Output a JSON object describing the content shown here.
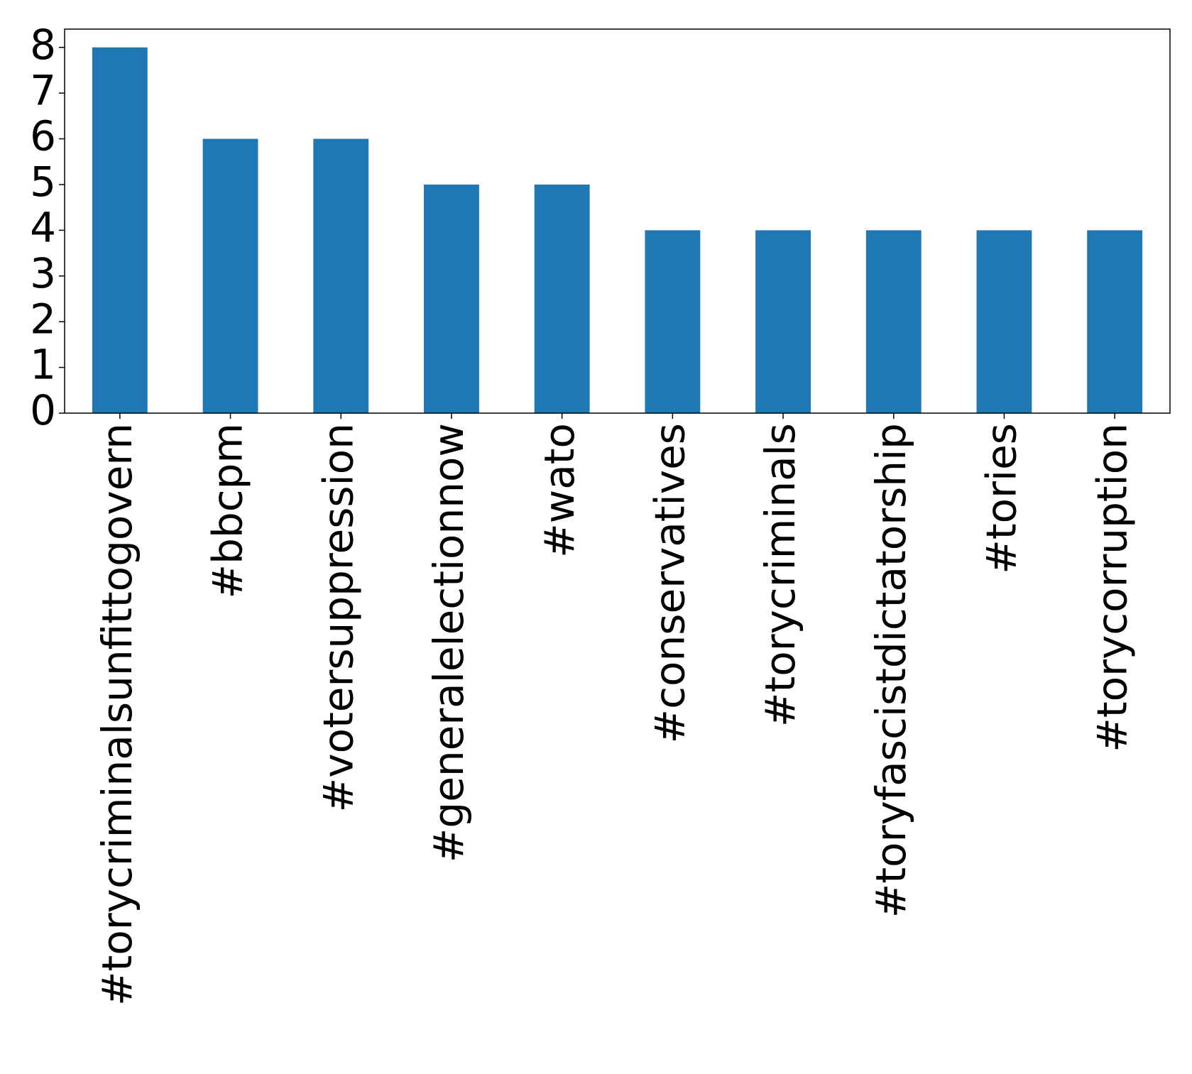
{
  "chart_data": {
    "type": "bar",
    "categories": [
      "#torycriminalsunfittogovern",
      "#bbcpm",
      "#votersuppression",
      "#generalelectionnow",
      "#wato",
      "#conservatives",
      "#torycriminals",
      "#toryfascistdictatorship",
      "#tories",
      "#torycorruption"
    ],
    "values": [
      8,
      6,
      6,
      5,
      5,
      4,
      4,
      4,
      4,
      4
    ],
    "color": "#1f77b4",
    "ylim": [
      0,
      8.4
    ],
    "yticks": [
      0,
      1,
      2,
      3,
      4,
      5,
      6,
      7,
      8
    ],
    "grid": false
  }
}
